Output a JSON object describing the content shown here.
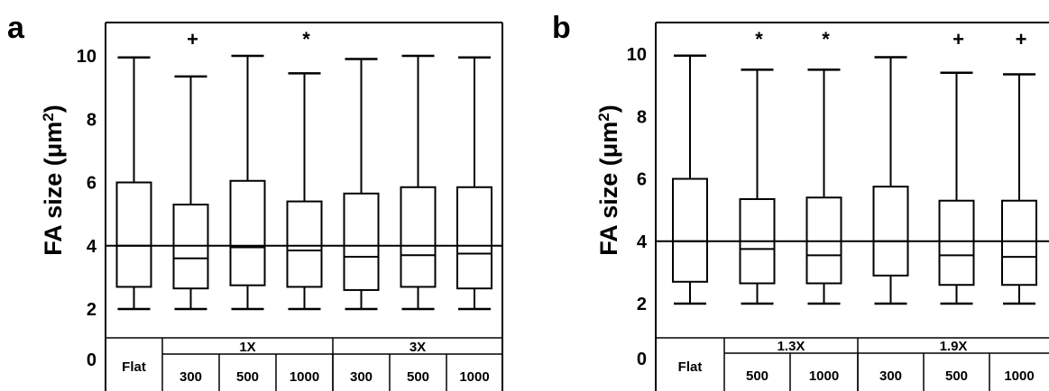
{
  "chart_data": [
    {
      "panel": "a",
      "type": "box",
      "ylabel": "FA size (μm²)",
      "ylabel_main": "FA size",
      "ylabel_unit": "(μm",
      "ylabel_sup": "2",
      "ylabel_close": ")",
      "ylim": [
        0,
        11
      ],
      "yticks": [
        "0",
        "2",
        "4",
        "6",
        "8",
        "10"
      ],
      "reference_line": 4,
      "groups": [
        {
          "label": "Flat",
          "categories": [
            "Flat"
          ]
        },
        {
          "label": "1X",
          "categories": [
            "300",
            "500",
            "1000"
          ]
        },
        {
          "label": "3X",
          "categories": [
            "300",
            "500",
            "1000"
          ]
        }
      ],
      "boxes": [
        {
          "category": "Flat",
          "whisker_low": 2.0,
          "q1": 2.7,
          "median": 4.0,
          "q3": 6.0,
          "whisker_high": 9.95,
          "marker": ""
        },
        {
          "category": "1X 300",
          "whisker_low": 2.0,
          "q1": 2.65,
          "median": 3.6,
          "q3": 5.3,
          "whisker_high": 9.35,
          "marker": "+"
        },
        {
          "category": "1X 500",
          "whisker_low": 2.0,
          "q1": 2.75,
          "median": 3.95,
          "q3": 6.05,
          "whisker_high": 10.0,
          "marker": ""
        },
        {
          "category": "1X 1000",
          "whisker_low": 2.0,
          "q1": 2.7,
          "median": 3.85,
          "q3": 5.4,
          "whisker_high": 9.45,
          "marker": "*"
        },
        {
          "category": "3X 300",
          "whisker_low": 2.0,
          "q1": 2.6,
          "median": 3.65,
          "q3": 5.65,
          "whisker_high": 9.9,
          "marker": ""
        },
        {
          "category": "3X 500",
          "whisker_low": 2.0,
          "q1": 2.7,
          "median": 3.7,
          "q3": 5.85,
          "whisker_high": 10.0,
          "marker": ""
        },
        {
          "category": "3X 1000",
          "whisker_low": 2.0,
          "q1": 2.65,
          "median": 3.75,
          "q3": 5.85,
          "whisker_high": 9.95,
          "marker": ""
        }
      ]
    },
    {
      "panel": "b",
      "type": "box",
      "ylabel": "FA size (μm²)",
      "ylabel_main": "FA size",
      "ylabel_unit": "(μm",
      "ylabel_sup": "2",
      "ylabel_close": ")",
      "ylim": [
        0,
        11
      ],
      "yticks": [
        "0",
        "2",
        "4",
        "6",
        "8",
        "10"
      ],
      "reference_line": 4,
      "groups": [
        {
          "label": "Flat",
          "categories": [
            "Flat"
          ]
        },
        {
          "label": "1.3X",
          "categories": [
            "500",
            "1000"
          ]
        },
        {
          "label": "1.9X",
          "categories": [
            "300",
            "500",
            "1000"
          ]
        }
      ],
      "boxes": [
        {
          "category": "Flat",
          "whisker_low": 2.0,
          "q1": 2.7,
          "median": 4.0,
          "q3": 6.0,
          "whisker_high": 9.95,
          "marker": ""
        },
        {
          "category": "1.3X 500",
          "whisker_low": 2.0,
          "q1": 2.65,
          "median": 3.75,
          "q3": 5.35,
          "whisker_high": 9.5,
          "marker": "*"
        },
        {
          "category": "1.3X 1000",
          "whisker_low": 2.0,
          "q1": 2.65,
          "median": 3.55,
          "q3": 5.4,
          "whisker_high": 9.5,
          "marker": "*"
        },
        {
          "category": "1.9X 300",
          "whisker_low": 2.0,
          "q1": 2.9,
          "median": 4.0,
          "q3": 5.75,
          "whisker_high": 9.9,
          "marker": ""
        },
        {
          "category": "1.9X 500",
          "whisker_low": 2.0,
          "q1": 2.6,
          "median": 3.55,
          "q3": 5.3,
          "whisker_high": 9.4,
          "marker": "+"
        },
        {
          "category": "1.9X 1000",
          "whisker_low": 2.0,
          "q1": 2.6,
          "median": 3.5,
          "q3": 5.3,
          "whisker_high": 9.35,
          "marker": "+"
        }
      ]
    }
  ]
}
